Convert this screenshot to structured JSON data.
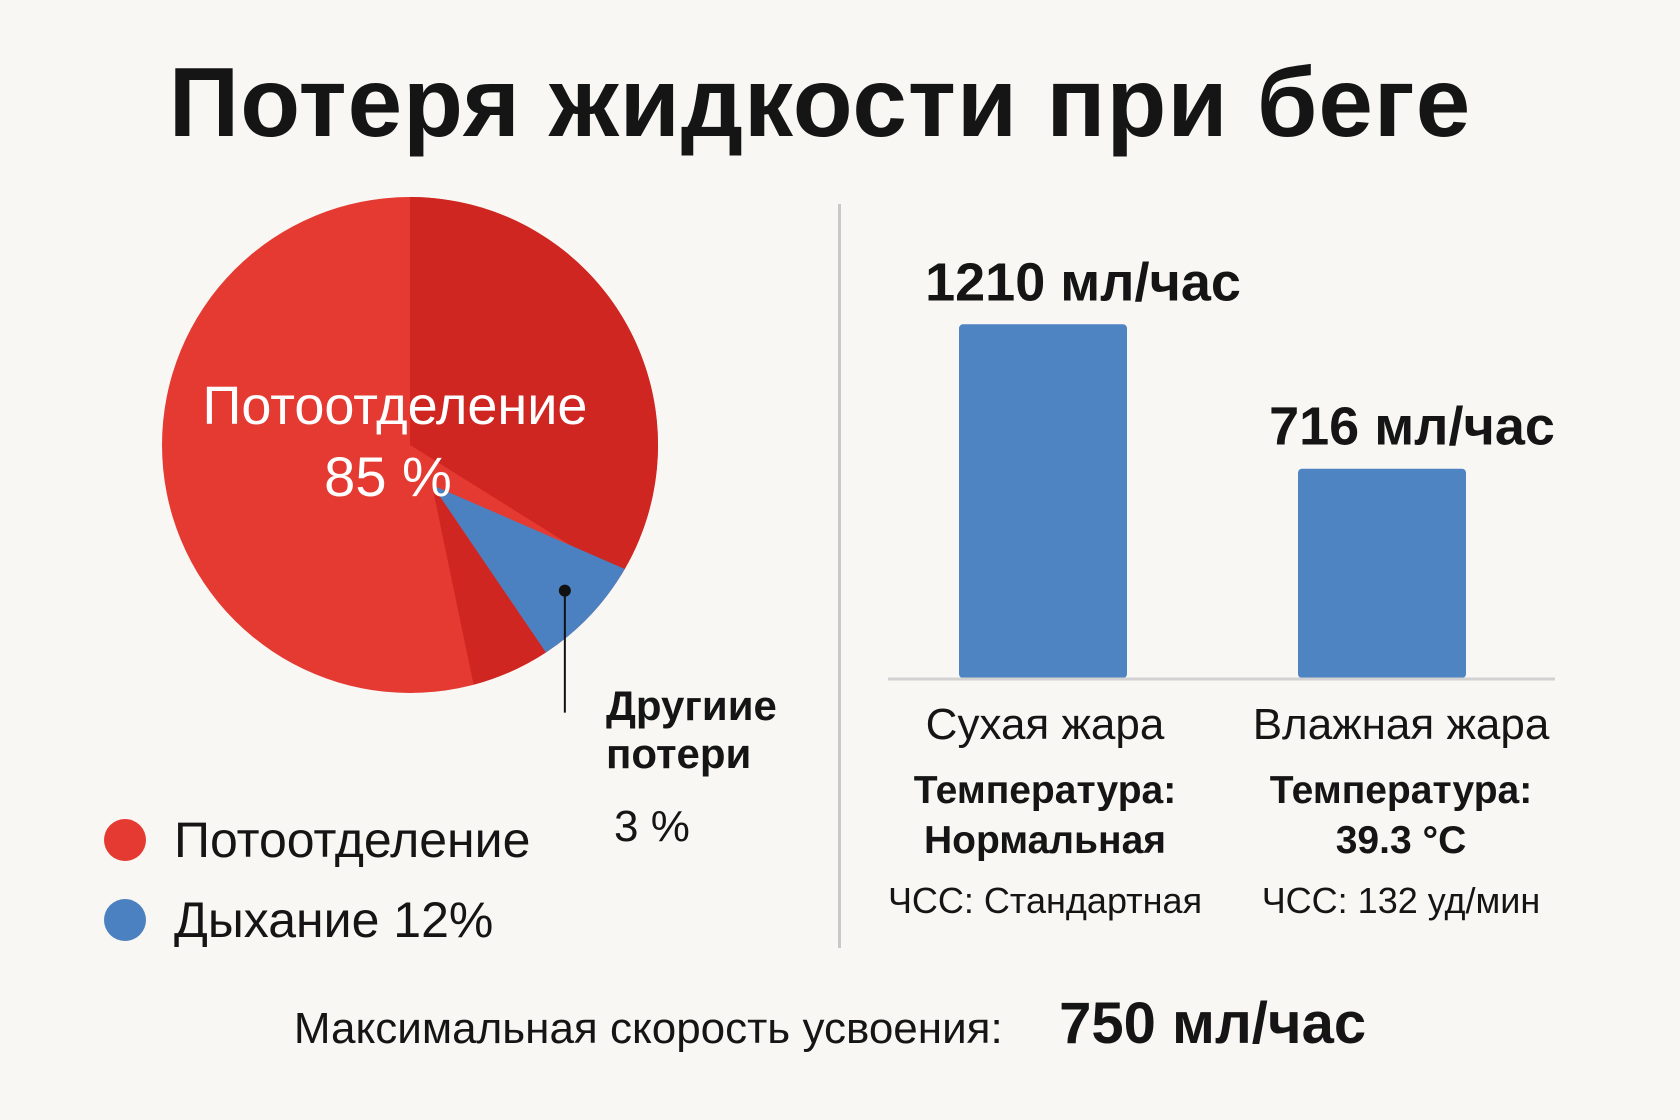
{
  "title": "Потеря жидкости при беге",
  "colors": {
    "sweat": "#e53a32",
    "sweat_dark": "#cf2622",
    "breathing": "#4b80c1",
    "bar": "#4f84c2",
    "axis": "#d2d2d2"
  },
  "chart_data": [
    {
      "type": "pie",
      "title": "",
      "slices": [
        {
          "label": "Потоотделение",
          "value": 85,
          "color": "#e53a32"
        },
        {
          "label": "Дыхание",
          "value": 12,
          "color": "#4b80c1"
        },
        {
          "label": "Другиие потери",
          "value": 3,
          "color": "#cf2622"
        }
      ],
      "center_label": {
        "name": "Потоотделение",
        "value": "85 %"
      },
      "other_callout": {
        "label": "Другиие потери",
        "value": "3 %"
      },
      "legend": [
        {
          "label": "Потоотделение",
          "color": "#e53a32"
        },
        {
          "label": "Дыхание 12%",
          "color": "#4b80c1"
        }
      ]
    },
    {
      "type": "bar",
      "title": "",
      "categories": [
        "Сухая жара",
        "Влажная жара"
      ],
      "values": [
        1210,
        716
      ],
      "value_labels": [
        "1210 мл/час",
        "716 мл/час"
      ],
      "unit": "мл/час",
      "ylim": [
        0,
        1300
      ],
      "grid": false,
      "details": [
        {
          "temp_label": "Температура:",
          "temp_value": "Нормальная",
          "hr": "ЧСС: Стандартная"
        },
        {
          "temp_label": "Температура:",
          "temp_value": "39.3 °C",
          "hr": "ЧСС: 132 уд/мин"
        }
      ]
    }
  ],
  "footer": {
    "label": "Максимальная скорость усвоения:",
    "value": "750 мл/час"
  }
}
